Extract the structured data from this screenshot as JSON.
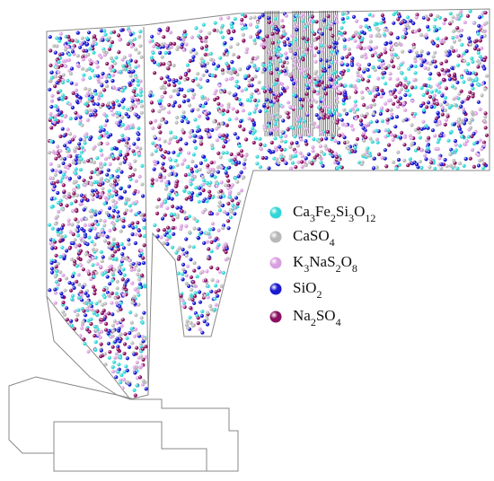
{
  "legend": {
    "items": [
      {
        "label": "Ca3Fe2Si3O12",
        "color": "#33d6d6"
      },
      {
        "label": "CaSO4",
        "color": "#b8b8b8"
      },
      {
        "label": "K3NaS2O8",
        "color": "#d9a0e0"
      },
      {
        "label": "SiO2",
        "color": "#1a1ad0"
      },
      {
        "label": "Na2SO4",
        "color": "#8a1060"
      }
    ]
  }
}
